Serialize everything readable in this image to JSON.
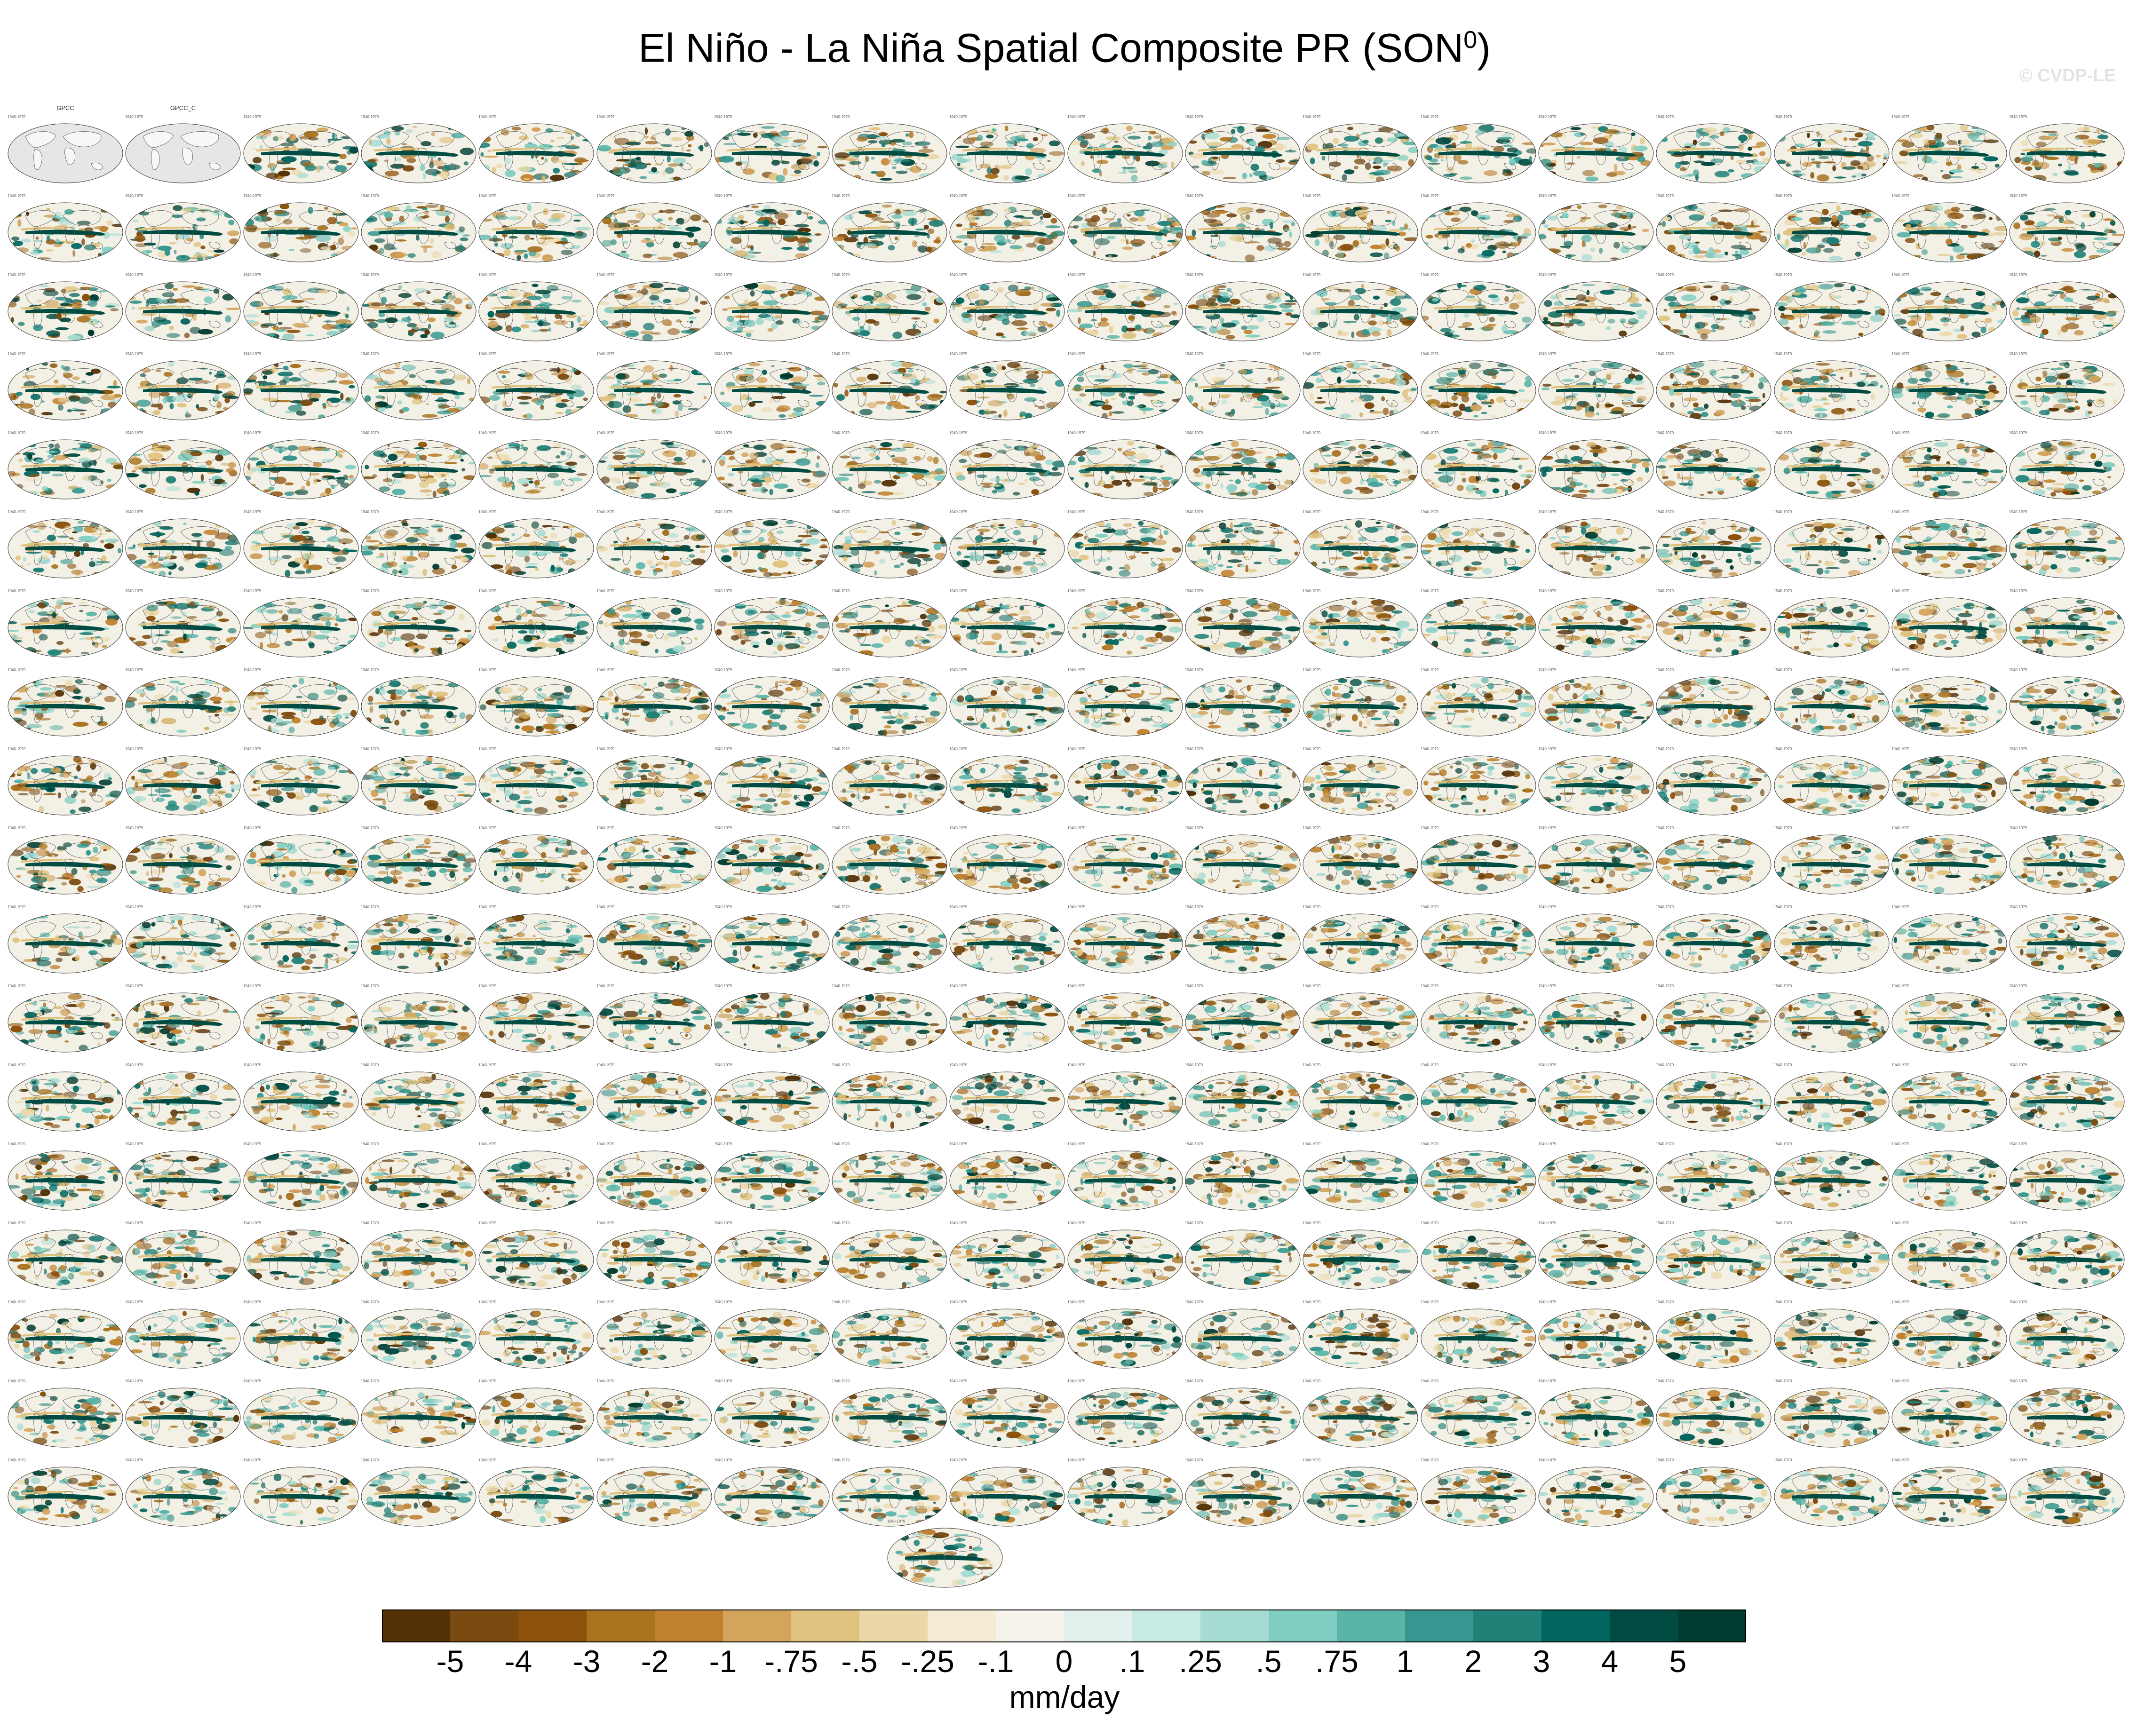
{
  "title": {
    "main": "El Niño - La Niña Spatial Composite PR (SON",
    "sup": "0",
    "close": ")"
  },
  "watermark": "© CVDP-LE",
  "colors": {
    "ocean_neutral": "#f3f0e6",
    "land_obs": "#e6e6e6",
    "coast": "#555555",
    "palette": [
      "#543005",
      "#7a4a10",
      "#8c510a",
      "#a8721f",
      "#bf812d",
      "#d2a45c",
      "#dfc27d",
      "#ebd8a8",
      "#f5ecd3",
      "#f5f3ec",
      "#e3f1ee",
      "#c7eae5",
      "#a7dcd3",
      "#80cdc1",
      "#5ab4a8",
      "#35978f",
      "#1f8177",
      "#01665e",
      "#004c42",
      "#003c30"
    ]
  },
  "chart_data": {
    "type": "heatmap",
    "title": "El Niño - La Niña Spatial Composite PR (SON0)",
    "description_of_layout": "grid of global map panels",
    "grid": {
      "rows": 18,
      "cols": 18,
      "extra_panels": 1
    },
    "panels": [
      {
        "title": "GPCC",
        "period": "1940-1979",
        "kind": "obs"
      },
      {
        "title": "GPCC_C",
        "period": "1940-1979",
        "kind": "obs"
      }
    ],
    "panel_title_prefixes": [
      "CanESM5",
      "CESM2 LENS",
      "CNRM-CM6-1",
      "GISS-E2-1-G",
      "IPSL-CM6A-LR",
      "MIROC6"
    ],
    "panel_period": "1940-1979",
    "colorbar": {
      "levels": [
        "-5",
        "-4",
        "-3",
        "-2",
        "-1",
        "-.75",
        "-.5",
        "-.25",
        "-.1",
        "0",
        ".1",
        ".25",
        ".5",
        ".75",
        "1",
        "2",
        "3",
        "4",
        "5"
      ],
      "units": "mm/day",
      "range": [
        -5,
        5
      ]
    }
  }
}
